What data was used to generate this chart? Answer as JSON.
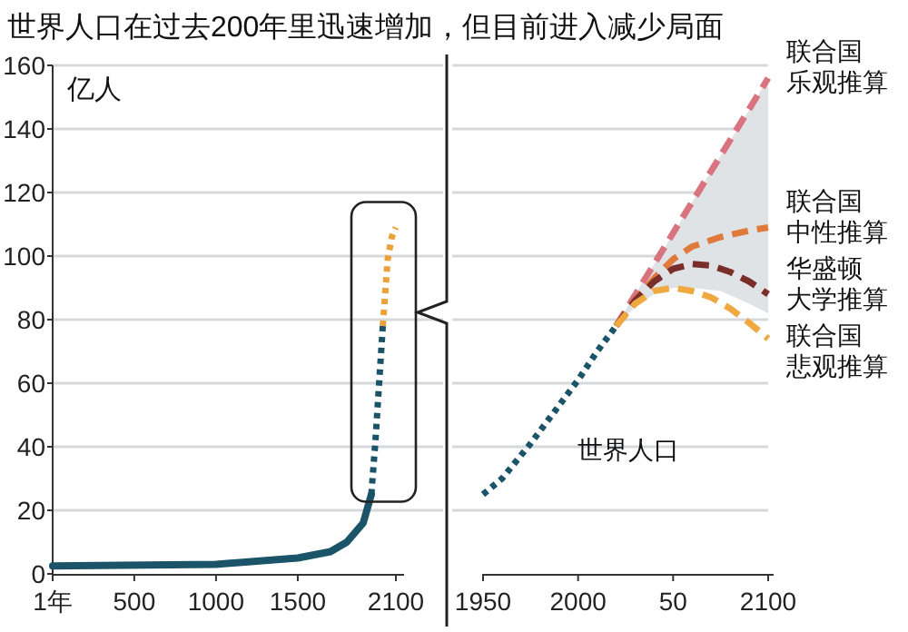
{
  "chart_data": [
    {
      "type": "line",
      "title": "世界人口在过去200年里迅速增加，但目前进入减少局面",
      "ylabel": "亿人",
      "xlim": [
        1,
        2150
      ],
      "ylim": [
        0,
        160
      ],
      "xticks": [
        {
          "value": 1,
          "label": "1年"
        },
        500,
        1000,
        1500,
        2100
      ],
      "yticks": [
        0,
        20,
        40,
        60,
        80,
        100,
        120,
        140,
        160
      ],
      "grid": "y",
      "series": [
        {
          "color": "#1b5369",
          "line_style": "solid",
          "x": [
            1,
            1000,
            1500,
            1700,
            1800,
            1900,
            1950
          ],
          "values": [
            2.5,
            3,
            5,
            7,
            10,
            16,
            25
          ]
        },
        {
          "color": "#1b5369",
          "line_style": "dotted",
          "x": [
            1950,
            1975,
            2000,
            2020
          ],
          "values": [
            25,
            42,
            62,
            78
          ]
        },
        {
          "color": "#eca23c",
          "line_style": "dotted",
          "x": [
            2020,
            2050,
            2075,
            2100
          ],
          "values": [
            78,
            99,
            106,
            109
          ]
        }
      ]
    },
    {
      "type": "line",
      "xlim": [
        1950,
        2100
      ],
      "ylim": [
        0,
        160
      ],
      "xticks": [
        1950,
        2000,
        {
          "value": 2050,
          "label": "50"
        },
        2100
      ],
      "yticks": [
        0,
        20,
        40,
        60,
        80,
        100,
        120,
        140,
        160
      ],
      "tick_labels": "x",
      "grid": "y",
      "series": [
        {
          "name": "世界人口",
          "color": "#1b5369",
          "line_style": "dotted",
          "x": [
            1950,
            1960,
            1975,
            1990,
            2000,
            2010,
            2020
          ],
          "values": [
            25,
            30,
            41,
            53,
            61,
            70,
            78
          ]
        },
        {
          "name": "联合国乐观推算",
          "color": "#d9737f",
          "line_style": "dashed",
          "x": [
            2020,
            2060,
            2100
          ],
          "values": [
            78,
            117,
            156
          ]
        },
        {
          "name": "联合国中性推算",
          "color": "#e07a3c",
          "line_style": "dashed",
          "x": [
            2020,
            2030,
            2040,
            2050,
            2060,
            2075,
            2090,
            2100
          ],
          "values": [
            78,
            86,
            93,
            99,
            103,
            106,
            108,
            109
          ],
          "lower": [
            78,
            84,
            88,
            90,
            90,
            89,
            85,
            82
          ],
          "upper": [
            78,
            88,
            97.5,
            107,
            117,
            131.5,
            146,
            156
          ]
        },
        {
          "name": "华盛顿大学推算",
          "color": "#7a2e2a",
          "line_style": "dashed",
          "x": [
            2020,
            2030,
            2040,
            2050,
            2060,
            2070,
            2080,
            2090,
            2100
          ],
          "values": [
            78,
            86,
            92,
            96,
            97.5,
            97,
            95,
            92,
            88
          ]
        },
        {
          "name": "联合国悲观推算",
          "color": "#f0a840",
          "line_style": "dashed",
          "x": [
            2020,
            2030,
            2040,
            2050,
            2060,
            2070,
            2080,
            2090,
            2100
          ],
          "values": [
            78,
            85,
            89,
            90,
            89,
            87,
            83.5,
            79,
            74
          ]
        }
      ]
    }
  ]
}
